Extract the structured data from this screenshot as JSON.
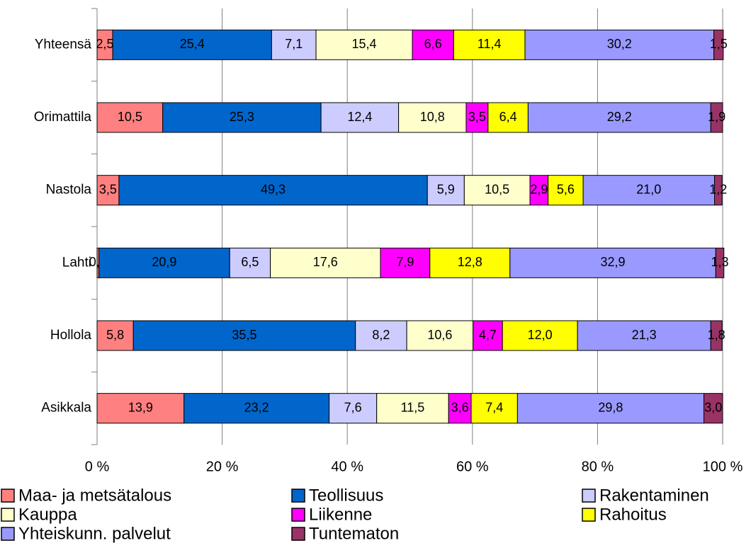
{
  "chart_data": {
    "type": "stacked_barh",
    "categories": [
      "Yhteensä",
      "Orimattila",
      "Nastola",
      "Lahti",
      "Hollola",
      "Asikkala"
    ],
    "series": [
      {
        "name": "Maa- ja metsätalous",
        "color": "#ff8080",
        "values": [
          2.5,
          10.5,
          3.5,
          0.3,
          5.8,
          13.9
        ],
        "value_labels": [
          "2,5",
          "10,5",
          "3,5",
          "0,3",
          "5,8",
          "13,9"
        ]
      },
      {
        "name": "Teollisuus",
        "color": "#0066cc",
        "values": [
          25.4,
          25.3,
          49.3,
          20.9,
          35.5,
          23.2
        ],
        "value_labels": [
          "25,4",
          "25,3",
          "49,3",
          "20,9",
          "35,5",
          "23,2"
        ]
      },
      {
        "name": "Rakentaminen",
        "color": "#ccccff",
        "values": [
          7.1,
          12.4,
          5.9,
          6.5,
          8.2,
          7.6
        ],
        "value_labels": [
          "7,1",
          "12,4",
          "5,9",
          "6,5",
          "8,2",
          "7,6"
        ]
      },
      {
        "name": "Kauppa",
        "color": "#ffffcc",
        "values": [
          15.4,
          10.8,
          10.5,
          17.6,
          10.6,
          11.5
        ],
        "value_labels": [
          "15,4",
          "10,8",
          "10,5",
          "17,6",
          "10,6",
          "11,5"
        ]
      },
      {
        "name": "Liikenne",
        "color": "#ff00ff",
        "values": [
          6.6,
          3.5,
          2.9,
          7.9,
          4.7,
          3.6
        ],
        "value_labels": [
          "6,6",
          "3,5",
          "2,9",
          "7,9",
          "4,7",
          "3,6"
        ]
      },
      {
        "name": "Rahoitus",
        "color": "#ffff00",
        "values": [
          11.4,
          6.4,
          5.6,
          12.8,
          12.0,
          7.4
        ],
        "value_labels": [
          "11,4",
          "6,4",
          "5,6",
          "12,8",
          "12,0",
          "7,4"
        ]
      },
      {
        "name": "Yhteiskunn. palvelut",
        "color": "#9999ff",
        "values": [
          30.2,
          29.2,
          21.0,
          32.9,
          21.3,
          29.8
        ],
        "value_labels": [
          "30,2",
          "29,2",
          "21,0",
          "32,9",
          "21,3",
          "29,8"
        ]
      },
      {
        "name": "Tuntematon",
        "color": "#993366",
        "values": [
          1.5,
          1.9,
          1.2,
          1.3,
          1.8,
          3.0
        ],
        "value_labels": [
          "1,5",
          "1,9",
          "1,2",
          "1,3",
          "1,8",
          "3,0"
        ]
      }
    ],
    "xlim": [
      0,
      100
    ],
    "xticks": [
      {
        "value": 0,
        "label": "0 %"
      },
      {
        "value": 20,
        "label": "20 %"
      },
      {
        "value": 40,
        "label": "40 %"
      },
      {
        "value": 60,
        "label": "60 %"
      },
      {
        "value": 80,
        "label": "80 %"
      },
      {
        "value": 100,
        "label": "100 %"
      }
    ],
    "grid": true,
    "legend": "bottom"
  }
}
